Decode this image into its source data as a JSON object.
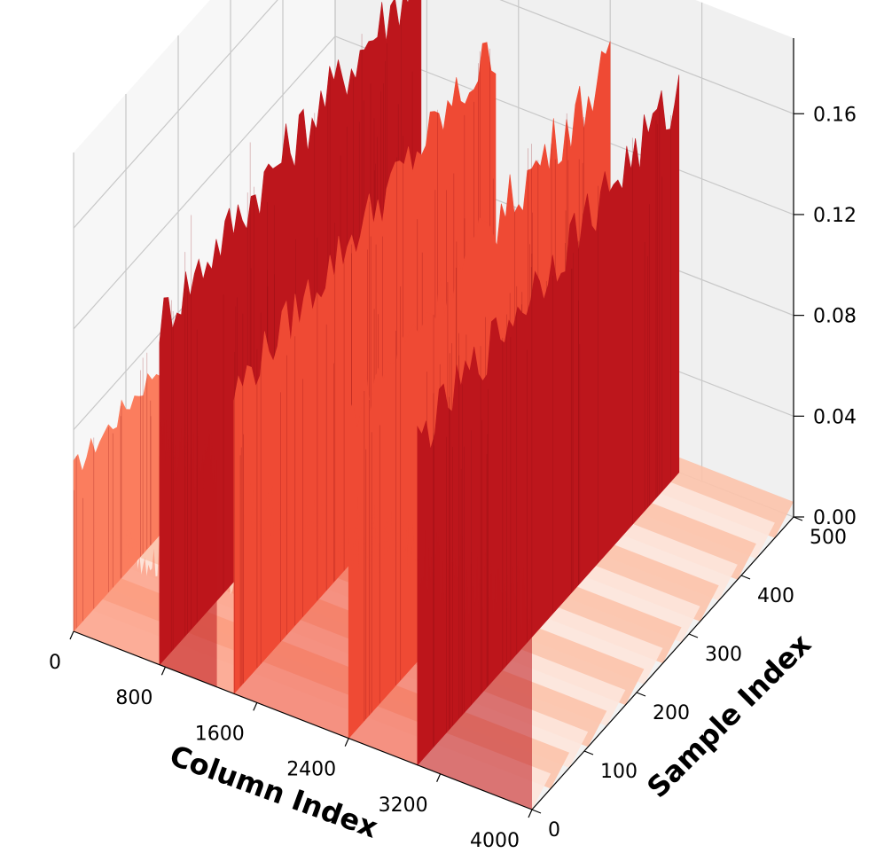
{
  "chart_data": {
    "type": "bar3d",
    "title": "",
    "xlabel": "Column Index",
    "ylabel": "Sample Index",
    "zlabel": "",
    "x_ticks": [
      0,
      800,
      1600,
      2400,
      3200,
      4000
    ],
    "y_ticks": [
      0,
      100,
      200,
      300,
      400,
      500
    ],
    "z_ticks": [
      "0.00",
      "0.04",
      "0.08",
      "0.12",
      "0.16"
    ],
    "xlim": [
      0,
      4000
    ],
    "ylim": [
      0,
      500
    ],
    "zlim": [
      0,
      0.19
    ],
    "grid": true,
    "colormap": "Reds",
    "colors": {
      "dark": "#bd161c",
      "mid": "#ef4a34",
      "light": "#fb7d5e",
      "pale": "#fcc3ab",
      "palest": "#fde5dc",
      "pane_left": "#f7f7f7",
      "pane_right": "#f0f0f0",
      "pane_floor": "#f2f2f2",
      "grid": "#c8c8c8"
    },
    "blocks": [
      {
        "x_start": 0,
        "x_end": 1400,
        "level": 0.075,
        "shade": "light"
      },
      {
        "x_start": 750,
        "x_end": 1250,
        "level": 0.16,
        "shade": "dark"
      },
      {
        "x_start": 1400,
        "x_end": 2400,
        "level": 0.14,
        "shade": "mid"
      },
      {
        "x_start": 2400,
        "x_end": 3000,
        "level": 0.15,
        "shade": "mid"
      },
      {
        "x_start": 3000,
        "x_end": 4000,
        "level": 0.15,
        "shade": "dark"
      }
    ]
  }
}
